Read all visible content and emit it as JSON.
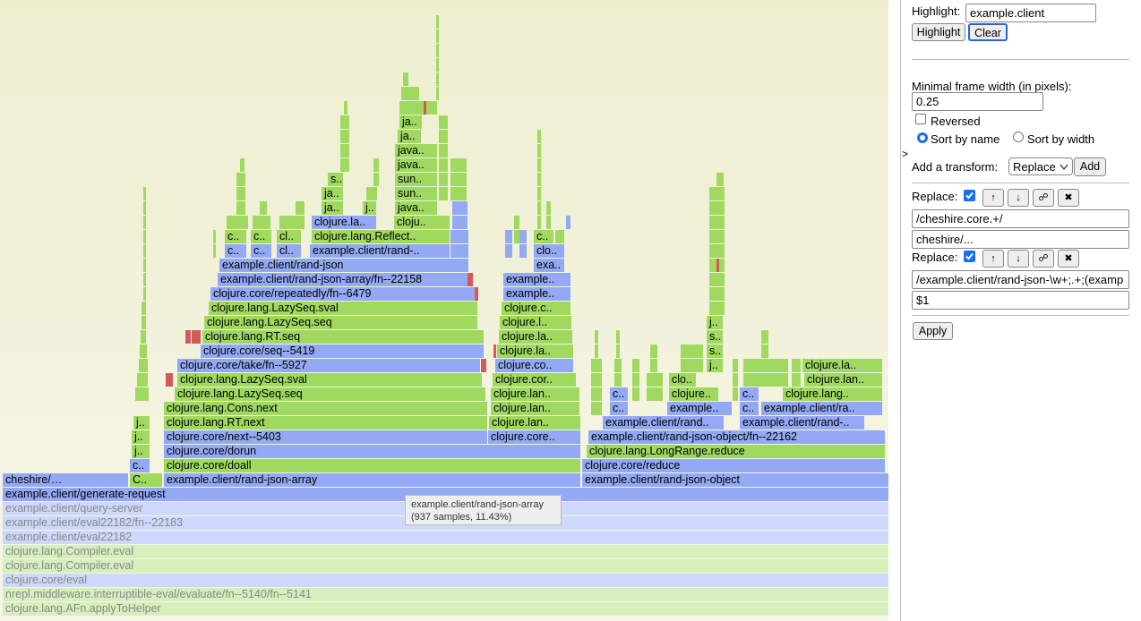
{
  "flamegraph": {
    "frames": [
      {
        "label": "clojure.lang.AFn.applyToHelper"
      },
      {
        "label": "nrepl.middleware.interruptible-eval/evaluate/fn--5140/fn--5141"
      },
      {
        "label": "clojure.core/eval"
      },
      {
        "label": "clojure.lang.Compiler.eval"
      },
      {
        "label": "clojure.lang.Compiler.eval"
      },
      {
        "label": "example.client/eval22182"
      },
      {
        "label": "example.client/eval22182/fn--22183"
      },
      {
        "label": "example.client/query-server"
      },
      {
        "label": "example.client/generate-request"
      },
      {
        "label": "cheshire/…"
      },
      {
        "label": "C.."
      },
      {
        "label": "example.client/rand-json-array"
      },
      {
        "label": "example.client/rand-json-object"
      },
      {
        "label": "c.."
      },
      {
        "label": "clojure.core/doall"
      },
      {
        "label": "clojure.core/reduce"
      },
      {
        "label": "j.."
      },
      {
        "label": "clojure.core/dorun"
      },
      {
        "label": "clojure.lang.LongRange.reduce"
      },
      {
        "label": "j.."
      },
      {
        "label": "clojure.core/next--5403"
      },
      {
        "label": "clojure.core.."
      },
      {
        "label": "example.client/rand-json-object/fn--22162"
      },
      {
        "label": "j.."
      },
      {
        "label": "clojure.lang.RT.next"
      },
      {
        "label": "clojure.lan.."
      },
      {
        "label": "example.client/rand.."
      },
      {
        "label": "example.client/rand-.."
      },
      {
        "label": "clojure.lang.Cons.next"
      },
      {
        "label": "clojure.lan.."
      },
      {
        "label": "c.."
      },
      {
        "label": "example.."
      },
      {
        "label": "c.."
      },
      {
        "label": "example.client/ra.."
      },
      {
        "label": "clojure.lang.LazySeq.seq"
      },
      {
        "label": "clojure.lan.."
      },
      {
        "label": "c.."
      },
      {
        "label": "clojure.."
      },
      {
        "label": "c.."
      },
      {
        "label": "clojure.lang.."
      },
      {
        "label": "clojure.lang.LazySeq.sval"
      },
      {
        "label": "clojure.cor.."
      },
      {
        "label": "clo.."
      },
      {
        "label": "clojure.lan.."
      },
      {
        "label": "clojure.core/take/fn--5927"
      },
      {
        "label": "clojure.co.."
      },
      {
        "label": "j.."
      },
      {
        "label": "clojure.la.."
      },
      {
        "label": "clojure.core/seq--5419"
      },
      {
        "label": "clojure.la.."
      },
      {
        "label": "s.."
      },
      {
        "label": "clojure.lang.RT.seq"
      },
      {
        "label": "clojure.la.."
      },
      {
        "label": "s.."
      },
      {
        "label": "clojure.lang.LazySeq.seq"
      },
      {
        "label": "clojure.l.."
      },
      {
        "label": "j.."
      },
      {
        "label": "clojure.lang.LazySeq.sval"
      },
      {
        "label": "clojure.c.."
      },
      {
        "label": "clojure.core/repeatedly/fn--6479"
      },
      {
        "label": "example.."
      },
      {
        "label": "example.client/rand-json-array/fn--22158"
      },
      {
        "label": "example.."
      },
      {
        "label": "example.client/rand-json"
      },
      {
        "label": "exa.."
      },
      {
        "label": "c.."
      },
      {
        "label": "c.."
      },
      {
        "label": "cl.."
      },
      {
        "label": "example.client/rand-.."
      },
      {
        "label": "clo.."
      },
      {
        "label": "c.."
      },
      {
        "label": "c.."
      },
      {
        "label": "cl.."
      },
      {
        "label": "clojure.lang.Reflect.."
      },
      {
        "label": "c.."
      },
      {
        "label": "clojure.la.."
      },
      {
        "label": "cloju.."
      },
      {
        "label": "ja.."
      },
      {
        "label": "j.."
      },
      {
        "label": "java.."
      },
      {
        "label": "ja.."
      },
      {
        "label": "sun.."
      },
      {
        "label": "s.."
      },
      {
        "label": "sun.."
      },
      {
        "label": "java.."
      },
      {
        "label": "java.."
      },
      {
        "label": "ja.."
      },
      {
        "label": "ja.."
      }
    ],
    "tooltip": {
      "title": "example.client/rand-json-array",
      "detail": "(937 samples, 11.43%)"
    }
  },
  "panel": {
    "toggle": ">",
    "highlight_label": "Highlight:",
    "highlight_value": "example.client",
    "highlight_button": "Highlight",
    "clear_button": "Clear",
    "min_width_label": "Minimal frame width (in pixels):",
    "min_width_value": "0.25",
    "reversed_label": "Reversed",
    "sort_name_label": "Sort by name",
    "sort_width_label": "Sort by width",
    "add_transform_label": "Add a transform:",
    "transform_option": "Replace",
    "add_button": "Add",
    "transforms": [
      {
        "label": "Replace:",
        "buttons": [
          "↑",
          "↓",
          "☍",
          "✖"
        ],
        "find": "/cheshire.core.+/",
        "replace": "cheshire/..."
      },
      {
        "label": "Replace:",
        "buttons": [
          "↑",
          "↓",
          "☍",
          "✖"
        ],
        "find": "/example.client/rand-json-\\w+;.+;(examp",
        "replace": "$1"
      }
    ],
    "apply_button": "Apply"
  }
}
